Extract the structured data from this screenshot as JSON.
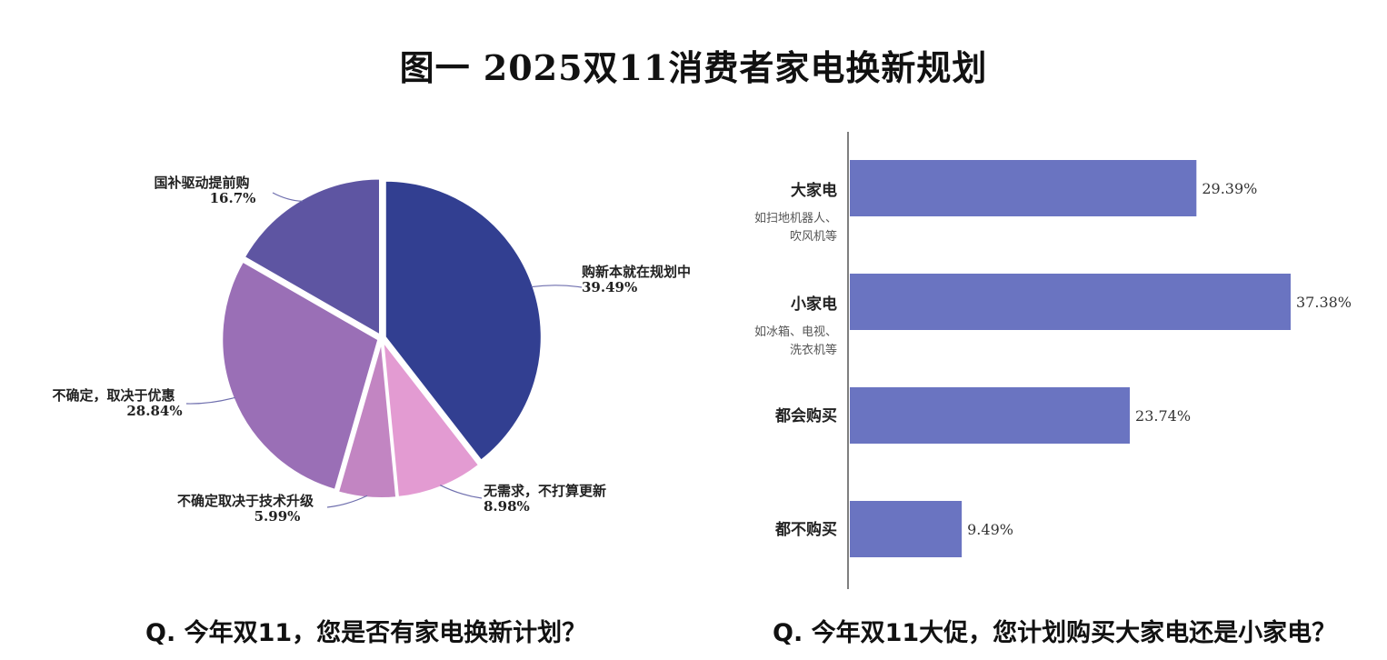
{
  "title": "图一 2025双11消费者家电换新规划",
  "question_left": "Q. 今年双11，您是否有家电换新计划？",
  "question_right": "Q. 今年双11大促，您计划购买大家电还是小家电？",
  "colors": {
    "pie": [
      "#323f91",
      "#e39bd2",
      "#c285c2",
      "#9a6fb6",
      "#5e55a2"
    ],
    "bar": "#6a74c1",
    "axis": "#555555",
    "leader": "#6f6fae"
  },
  "chart_data": [
    {
      "type": "pie",
      "slices": [
        {
          "label": "购新本就在规划中",
          "value": 39.49,
          "value_label": "39.49%"
        },
        {
          "label": "无需求，不打算更新",
          "value": 8.98,
          "value_label": "8.98%"
        },
        {
          "label": "不确定取决于技术升级",
          "value": 5.99,
          "value_label": "5.99%"
        },
        {
          "label": "不确定，取决于优惠",
          "value": 28.84,
          "value_label": "28.84%"
        },
        {
          "label": "国补驱动提前购",
          "value": 16.7,
          "value_label": "16.7%"
        }
      ]
    },
    {
      "type": "bar",
      "orientation": "horizontal",
      "xlim": [
        0,
        40
      ],
      "bars": [
        {
          "label": "大家电",
          "sub": [
            "如扫地机器人、",
            "吹风机等"
          ],
          "value": 29.39,
          "value_label": "29.39%"
        },
        {
          "label": "小家电",
          "sub": [
            "如冰箱、电视、",
            "洗衣机等"
          ],
          "value": 37.38,
          "value_label": "37.38%"
        },
        {
          "label": "都会购买",
          "sub": [],
          "value": 23.74,
          "value_label": "23.74%"
        },
        {
          "label": "都不购买",
          "sub": [],
          "value": 9.49,
          "value_label": "9.49%"
        }
      ]
    }
  ]
}
